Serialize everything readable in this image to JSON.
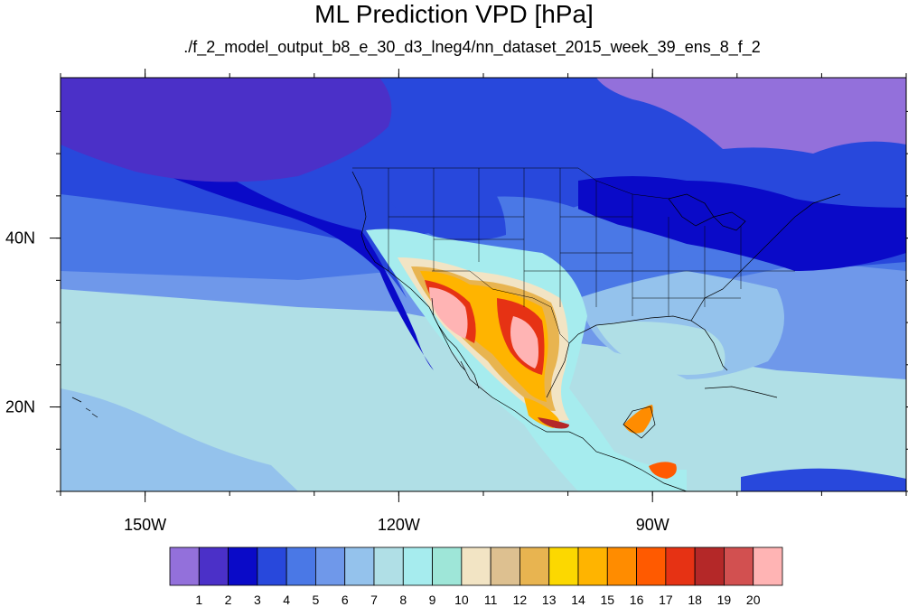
{
  "title": "ML Prediction VPD [hPa]",
  "subtitle": "./f_2_model_output_b8_e_30_d3_lneg4/nn_dataset_2015_week_39_ens_8_f_2",
  "chart_data": {
    "type": "heatmap",
    "variable": "VPD",
    "units": "hPa",
    "projection": "cylindrical equidistant",
    "lon_range": [
      -160,
      -60
    ],
    "lat_range": [
      10,
      59
    ],
    "lon_ticks": [
      {
        "value": -150,
        "label": "150W"
      },
      {
        "value": -120,
        "label": "120W"
      },
      {
        "value": -90,
        "label": "90W"
      }
    ],
    "lat_ticks": [
      {
        "value": 40,
        "label": "40N"
      },
      {
        "value": 20,
        "label": "20N"
      }
    ],
    "colorbar": {
      "orientation": "horizontal",
      "placement": "bottom",
      "levels": [
        "1",
        "2",
        "3",
        "4",
        "5",
        "6",
        "7",
        "8",
        "9",
        "10",
        "11",
        "12",
        "13",
        "14",
        "15",
        "16",
        "17",
        "18",
        "19",
        "20"
      ],
      "colors": [
        "#9370db",
        "#4b30c8",
        "#0a0ac8",
        "#2848dc",
        "#4a78e6",
        "#6f98ea",
        "#94c2ec",
        "#b0dfe6",
        "#a6ecee",
        "#9ee6d8",
        "#f2e4c4",
        "#ddc090",
        "#e8b450",
        "#fcd800",
        "#ffb400",
        "#ff8c00",
        "#ff5a00",
        "#e63214",
        "#b42828",
        "#d25050",
        "#ffb4b4"
      ]
    },
    "features": {
      "west_coast_pacific_min": 3,
      "north_pacific_open_ocean": 4,
      "subtropical_pacific": 6,
      "tropical_pacific_southwest": 7,
      "eastern_us_and_gulf": 7,
      "southeast_us": 8,
      "northeast_us_and_canada": 3,
      "hudson_bay_region": 1,
      "great_basin": 4,
      "arizona_sonora_max": 20,
      "chihuahua_texas_max": 20,
      "central_mexico": 15,
      "southern_mexico": 18,
      "central_america": 16
    }
  }
}
